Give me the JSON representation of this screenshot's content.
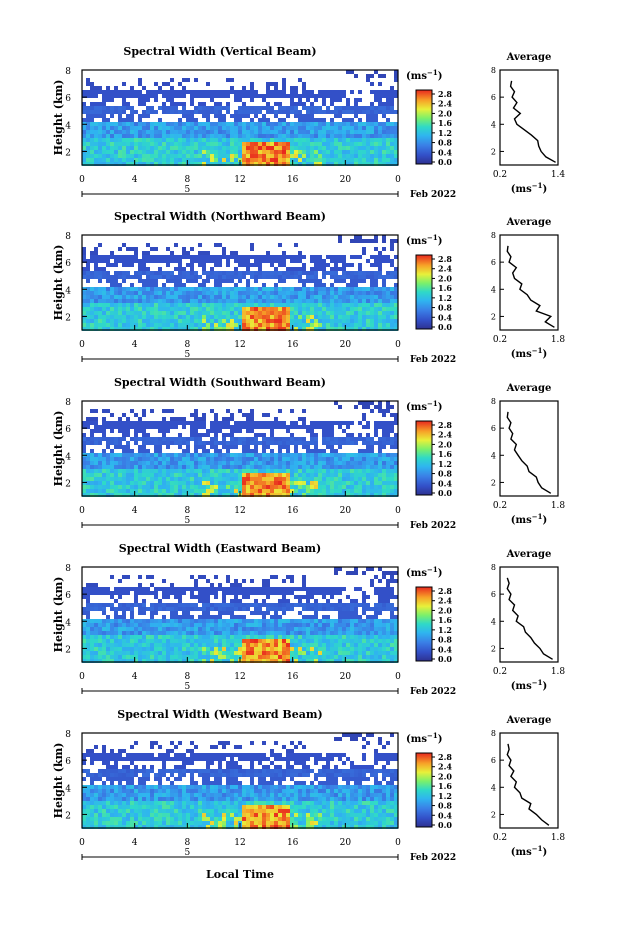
{
  "figure": {
    "xlabel": "Local Time",
    "date_label": "Feb 2022",
    "day_marker": "5",
    "colorbar_unit_base": "(ms",
    "colorbar_unit_exp": "−1",
    "avg_title": "Average",
    "avg_xlabel_base": "(ms",
    "avg_xlabel_exp": "−1",
    "ylabel": "Height (km)"
  },
  "chart_data": [
    {
      "type": "heatmap",
      "title": "Spectral Width (Vertical Beam)",
      "xlabel": "Local Time",
      "ylabel": "Height (km)",
      "x_ticks": [
        "0",
        "4",
        "8",
        "12",
        "16",
        "20",
        "0"
      ],
      "xlim": [
        0,
        24
      ],
      "y_ticks": [
        "2",
        "4",
        "6",
        "8"
      ],
      "ylim": [
        1,
        8
      ],
      "colorbar": {
        "ticks": [
          "0.0",
          "0.4",
          "0.8",
          "1.2",
          "1.6",
          "2.0",
          "2.4",
          "2.8"
        ],
        "range": [
          0,
          3.0
        ],
        "unit": "ms-1"
      },
      "average_profile": {
        "title": "Average",
        "x_ticks": [
          "0.2",
          "1.4"
        ],
        "xlim": [
          0.2,
          1.4
        ],
        "y_ticks": [
          "2",
          "4",
          "6",
          "8"
        ],
        "ylim": [
          1,
          8
        ],
        "height": [
          1.2,
          1.6,
          2.0,
          2.4,
          2.8,
          3.2,
          3.6,
          4.0,
          4.4,
          4.8,
          5.2,
          5.6,
          6.0,
          6.4,
          6.8,
          7.2
        ],
        "width": [
          1.35,
          1.15,
          1.05,
          1.0,
          0.98,
          0.85,
          0.7,
          0.55,
          0.5,
          0.62,
          0.48,
          0.55,
          0.45,
          0.5,
          0.42,
          0.44
        ]
      }
    },
    {
      "type": "heatmap",
      "title": "Spectral Width (Northward Beam)",
      "xlabel": "Local Time",
      "ylabel": "Height (km)",
      "x_ticks": [
        "0",
        "4",
        "8",
        "12",
        "16",
        "20",
        "0"
      ],
      "xlim": [
        0,
        24
      ],
      "y_ticks": [
        "2",
        "4",
        "6",
        "8"
      ],
      "ylim": [
        1,
        8
      ],
      "colorbar": {
        "ticks": [
          "0.0",
          "0.4",
          "0.8",
          "1.2",
          "1.6",
          "2.0",
          "2.4",
          "2.8"
        ],
        "range": [
          0,
          3.0
        ],
        "unit": "ms-1"
      },
      "average_profile": {
        "title": "Average",
        "x_ticks": [
          "0.2",
          "1.8"
        ],
        "xlim": [
          0.2,
          1.8
        ],
        "y_ticks": [
          "2",
          "4",
          "6",
          "8"
        ],
        "ylim": [
          1,
          8
        ],
        "height": [
          1.2,
          1.6,
          2.0,
          2.4,
          2.8,
          3.2,
          3.6,
          4.0,
          4.4,
          4.8,
          5.2,
          5.6,
          6.0,
          6.4,
          6.8,
          7.2
        ],
        "width": [
          1.7,
          1.45,
          1.6,
          1.2,
          1.3,
          1.05,
          0.95,
          0.75,
          0.8,
          0.6,
          0.55,
          0.65,
          0.45,
          0.5,
          0.4,
          0.42
        ]
      }
    },
    {
      "type": "heatmap",
      "title": "Spectral Width (Southward Beam)",
      "xlabel": "Local Time",
      "ylabel": "Height (km)",
      "x_ticks": [
        "0",
        "4",
        "8",
        "12",
        "16",
        "20",
        "0"
      ],
      "xlim": [
        0,
        24
      ],
      "y_ticks": [
        "2",
        "4",
        "6",
        "8"
      ],
      "ylim": [
        1,
        8
      ],
      "colorbar": {
        "ticks": [
          "0.0",
          "0.4",
          "0.8",
          "1.2",
          "1.6",
          "2.0",
          "2.4",
          "2.8"
        ],
        "range": [
          0,
          3.0
        ],
        "unit": "ms-1"
      },
      "average_profile": {
        "title": "Average",
        "x_ticks": [
          "0.2",
          "1.8"
        ],
        "xlim": [
          0.2,
          1.8
        ],
        "y_ticks": [
          "2",
          "4",
          "6",
          "8"
        ],
        "ylim": [
          1,
          8
        ],
        "height": [
          1.2,
          1.6,
          2.0,
          2.4,
          2.8,
          3.2,
          3.6,
          4.0,
          4.4,
          4.8,
          5.2,
          5.6,
          6.0,
          6.4,
          6.8,
          7.2
        ],
        "width": [
          1.6,
          1.35,
          1.25,
          1.2,
          1.0,
          0.95,
          0.8,
          0.7,
          0.6,
          0.65,
          0.5,
          0.55,
          0.45,
          0.5,
          0.4,
          0.42
        ]
      }
    },
    {
      "type": "heatmap",
      "title": "Spectral Width (Eastward Beam)",
      "xlabel": "Local Time",
      "ylabel": "Height (km)",
      "x_ticks": [
        "0",
        "4",
        "8",
        "12",
        "16",
        "20",
        "0"
      ],
      "xlim": [
        0,
        24
      ],
      "y_ticks": [
        "2",
        "4",
        "6",
        "8"
      ],
      "ylim": [
        1,
        8
      ],
      "colorbar": {
        "ticks": [
          "0.0",
          "0.4",
          "0.8",
          "1.2",
          "1.6",
          "2.0",
          "2.4",
          "2.8"
        ],
        "range": [
          0,
          3.0
        ],
        "unit": "ms-1"
      },
      "average_profile": {
        "title": "Average",
        "x_ticks": [
          "0.2",
          "1.8"
        ],
        "xlim": [
          0.2,
          1.8
        ],
        "y_ticks": [
          "2",
          "4",
          "6",
          "8"
        ],
        "ylim": [
          1,
          8
        ],
        "height": [
          1.2,
          1.6,
          2.0,
          2.4,
          2.8,
          3.2,
          3.6,
          4.0,
          4.4,
          4.8,
          5.2,
          5.6,
          6.0,
          6.4,
          6.8,
          7.2
        ],
        "width": [
          1.65,
          1.4,
          1.3,
          1.15,
          1.05,
          0.9,
          0.85,
          0.65,
          0.7,
          0.55,
          0.6,
          0.45,
          0.5,
          0.4,
          0.45,
          0.4
        ]
      }
    },
    {
      "type": "heatmap",
      "title": "Spectral Width (Westward Beam)",
      "xlabel": "Local Time",
      "ylabel": "Height (km)",
      "x_ticks": [
        "0",
        "4",
        "8",
        "12",
        "16",
        "20",
        "0"
      ],
      "xlim": [
        0,
        24
      ],
      "y_ticks": [
        "2",
        "4",
        "6",
        "8"
      ],
      "ylim": [
        1,
        8
      ],
      "colorbar": {
        "ticks": [
          "0.0",
          "0.4",
          "0.8",
          "1.2",
          "1.6",
          "2.0",
          "2.4",
          "2.8"
        ],
        "range": [
          0,
          3.0
        ],
        "unit": "ms-1"
      },
      "average_profile": {
        "title": "Average",
        "x_ticks": [
          "0.2",
          "1.8"
        ],
        "xlim": [
          0.2,
          1.8
        ],
        "y_ticks": [
          "2",
          "4",
          "6",
          "8"
        ],
        "ylim": [
          1,
          8
        ],
        "height": [
          1.2,
          1.6,
          2.0,
          2.4,
          2.8,
          3.2,
          3.6,
          4.0,
          4.4,
          4.8,
          5.2,
          5.6,
          6.0,
          6.4,
          6.8,
          7.2
        ],
        "width": [
          1.55,
          1.35,
          1.2,
          1.0,
          1.05,
          0.8,
          0.75,
          0.6,
          0.65,
          0.5,
          0.58,
          0.45,
          0.5,
          0.4,
          0.45,
          0.42
        ]
      }
    }
  ]
}
